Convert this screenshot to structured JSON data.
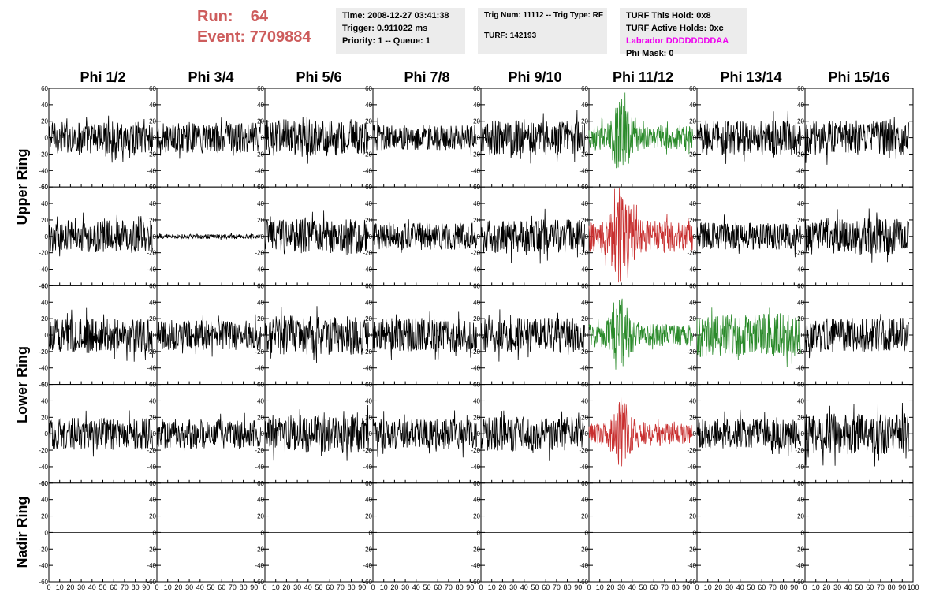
{
  "run": {
    "run_label": "Run:    64",
    "event_label": "Event: 7709884"
  },
  "time_box": {
    "time": "Time: 2008-12-27 03:41:38",
    "trigger": "Trigger: 0.911022 ms",
    "priority": "Priority: 1 -- Queue: 1"
  },
  "trig_box": {
    "trig": "Trig Num: 11112 -- Trig Type: RF",
    "turf": "TURF: 142193"
  },
  "turf_box": {
    "this_hold": "TURF This Hold: 0x8",
    "active_holds": "TURF Active Holds: 0xc",
    "labrador": "Labrador DDDDDDDDAA",
    "phi_mask": "Phi Mask: 0",
    "labrador_color": "#ee00ee"
  },
  "columns": [
    "Phi 1/2",
    "Phi 3/4",
    "Phi 5/6",
    "Phi 7/8",
    "Phi 9/10",
    "Phi 11/12",
    "Phi 13/14",
    "Phi 15/16"
  ],
  "row_labels": [
    {
      "label": "Upper Ring",
      "rows": [
        0,
        1
      ]
    },
    {
      "label": "Lower Ring",
      "rows": [
        2,
        3
      ]
    },
    {
      "label": "Nadir Ring",
      "rows": [
        4
      ]
    }
  ],
  "chart_data": {
    "type": "line",
    "description_axes": "Waveform grid; x axis 0-100 (ns), y axis -60 to 60",
    "xlim": [
      0,
      100
    ],
    "ylim": [
      -60,
      60
    ],
    "y_ticks": [
      -60,
      -40,
      -20,
      0,
      20,
      40,
      60
    ],
    "x_tick_labels": [
      "0",
      "10",
      "20",
      "30",
      "40",
      "50",
      "60",
      "70",
      "80",
      "90",
      "100"
    ],
    "colors": {
      "normal": "#000000",
      "green": "#2a8a2a",
      "red": "#c83030"
    },
    "panels": [
      [
        {
          "amp": 14,
          "color": "normal"
        },
        {
          "amp": 13,
          "color": "normal"
        },
        {
          "amp": 16,
          "color": "normal"
        },
        {
          "amp": 11,
          "color": "normal"
        },
        {
          "amp": 15,
          "color": "normal"
        },
        {
          "amp": 22,
          "color": "green",
          "burst": true
        },
        {
          "amp": 15,
          "color": "normal"
        },
        {
          "amp": 15,
          "color": "normal"
        }
      ],
      [
        {
          "amp": 14,
          "color": "normal"
        },
        {
          "amp": 2,
          "color": "normal"
        },
        {
          "amp": 15,
          "color": "normal"
        },
        {
          "amp": 12,
          "color": "normal"
        },
        {
          "amp": 15,
          "color": "normal"
        },
        {
          "amp": 30,
          "color": "red",
          "burst": true
        },
        {
          "amp": 12,
          "color": "normal"
        },
        {
          "amp": 16,
          "color": "normal"
        }
      ],
      [
        {
          "amp": 15,
          "color": "normal"
        },
        {
          "amp": 13,
          "color": "normal"
        },
        {
          "amp": 17,
          "color": "normal"
        },
        {
          "amp": 15,
          "color": "normal"
        },
        {
          "amp": 15,
          "color": "normal"
        },
        {
          "amp": 22,
          "color": "green",
          "burst": true
        },
        {
          "amp": 19,
          "color": "green"
        },
        {
          "amp": 15,
          "color": "normal"
        }
      ],
      [
        {
          "amp": 14,
          "color": "normal"
        },
        {
          "amp": 13,
          "color": "normal"
        },
        {
          "amp": 16,
          "color": "normal"
        },
        {
          "amp": 13,
          "color": "normal"
        },
        {
          "amp": 15,
          "color": "normal"
        },
        {
          "amp": 20,
          "color": "red",
          "burst": true
        },
        {
          "amp": 13,
          "color": "normal"
        },
        {
          "amp": 18,
          "color": "normal"
        }
      ],
      [
        {
          "amp": 0,
          "color": "normal"
        },
        {
          "amp": 0,
          "color": "normal"
        },
        {
          "amp": 0,
          "color": "normal"
        },
        {
          "amp": 0,
          "color": "normal"
        },
        {
          "amp": 0,
          "color": "normal"
        },
        {
          "amp": 0,
          "color": "normal"
        },
        {
          "amp": 0,
          "color": "normal"
        },
        {
          "amp": 0,
          "color": "normal"
        }
      ]
    ]
  }
}
